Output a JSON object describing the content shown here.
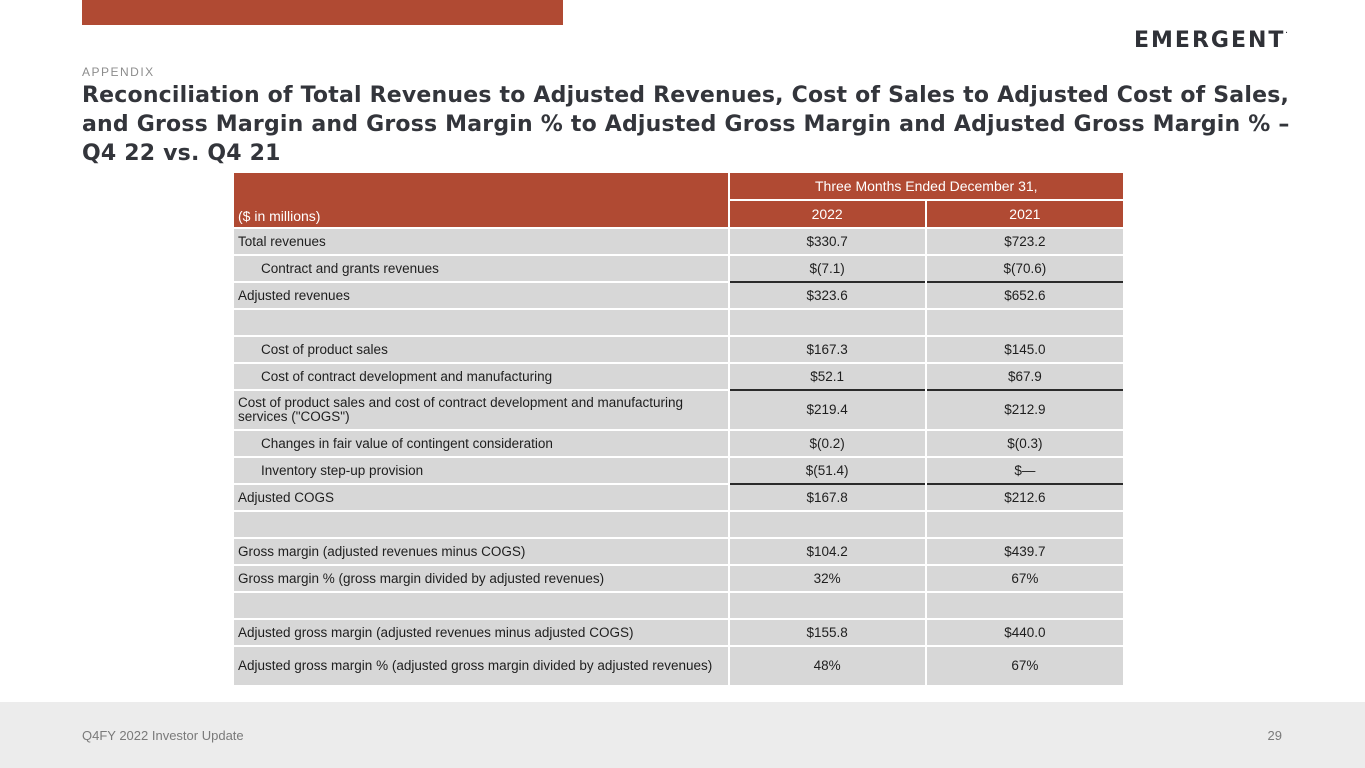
{
  "logo": {
    "text": "EMERGENT",
    "mark": "."
  },
  "section_label": "APPENDIX",
  "title": "Reconciliation of Total Revenues to Adjusted Revenues, Cost of Sales to Adjusted Cost of Sales, and Gross Margin and Gross Margin % to Adjusted Gross Margin and Adjusted Gross Margin % – Q4 22 vs. Q4 21",
  "table": {
    "group_header": "Three Months Ended December 31,",
    "units_label": "($ in millions)",
    "years": [
      "2022",
      "2021"
    ],
    "rows": [
      {
        "label": "Total revenues",
        "v2022": "$330.7",
        "v2021": "$723.2"
      },
      {
        "label": "Contract and grants revenues",
        "v2022": "$(7.1)",
        "v2021": "$(70.6)"
      },
      {
        "label": "Adjusted revenues",
        "v2022": "$323.6",
        "v2021": "$652.6"
      },
      {
        "label": "",
        "v2022": "",
        "v2021": ""
      },
      {
        "label": "Cost of product sales",
        "v2022": "$167.3",
        "v2021": "$145.0"
      },
      {
        "label": "Cost of contract development and manufacturing",
        "v2022": "$52.1",
        "v2021": "$67.9"
      },
      {
        "label": "Cost of product sales and cost of contract development and manufacturing services (\"COGS\")",
        "v2022": "$219.4",
        "v2021": "$212.9"
      },
      {
        "label": "Changes in fair value of contingent consideration",
        "v2022": "$(0.2)",
        "v2021": "$(0.3)"
      },
      {
        "label": "Inventory step-up provision",
        "v2022": "$(51.4)",
        "v2021": "$—"
      },
      {
        "label": "Adjusted COGS",
        "v2022": "$167.8",
        "v2021": "$212.6"
      },
      {
        "label": "",
        "v2022": "",
        "v2021": ""
      },
      {
        "label": "Gross margin (adjusted revenues minus COGS)",
        "v2022": "$104.2",
        "v2021": "$439.7"
      },
      {
        "label": "Gross margin % (gross margin divided by adjusted revenues)",
        "v2022": "32%",
        "v2021": "67%"
      },
      {
        "label": "",
        "v2022": "",
        "v2021": ""
      },
      {
        "label": "Adjusted gross margin (adjusted revenues minus adjusted COGS)",
        "v2022": "$155.8",
        "v2021": "$440.0"
      },
      {
        "label": "Adjusted gross margin % (adjusted gross margin divided by adjusted revenues)",
        "v2022": "48%",
        "v2021": "67%"
      }
    ]
  },
  "footer": {
    "left": "Q4FY 2022 Investor Update",
    "page": "29"
  },
  "colors": {
    "accent": "#b04a33",
    "row_bg": "#d7d7d7",
    "footer_bg": "#ececec",
    "title": "#33353b"
  }
}
